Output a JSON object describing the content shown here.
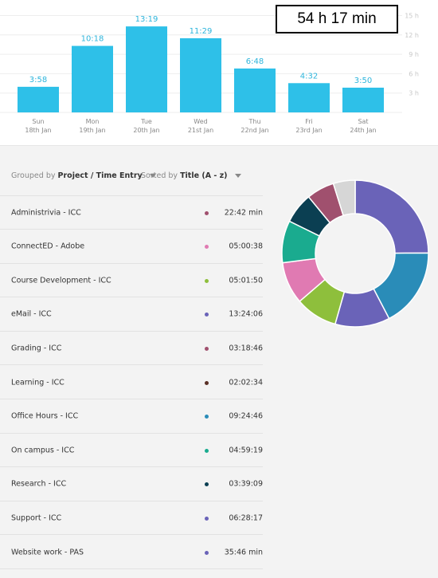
{
  "total": "54 h 17 min",
  "chart_data": {
    "type": "bar",
    "categories": [
      "Sun 18th Jan",
      "Mon 19th Jan",
      "Tue 20th Jan",
      "Wed 21st Jan",
      "Thu 22nd Jan",
      "Fri 23rd Jan",
      "Sat 24th Jan"
    ],
    "days": [
      {
        "day": "Sun",
        "date": "18th Jan"
      },
      {
        "day": "Mon",
        "date": "19th Jan"
      },
      {
        "day": "Tue",
        "date": "20th Jan"
      },
      {
        "day": "Wed",
        "date": "21st Jan"
      },
      {
        "day": "Thu",
        "date": "22nd Jan"
      },
      {
        "day": "Fri",
        "date": "23rd Jan"
      },
      {
        "day": "Sat",
        "date": "24th Jan"
      }
    ],
    "values_hours": [
      3.967,
      10.3,
      13.317,
      11.483,
      6.8,
      4.533,
      3.833
    ],
    "value_labels": [
      "3:58",
      "10:18",
      "13:19",
      "11:29",
      "6:48",
      "4:32",
      "3:50"
    ],
    "y_ticks": [
      "3 h",
      "6 h",
      "9 h",
      "12 h",
      "15 h"
    ],
    "ylim": [
      0,
      15
    ],
    "bar_color": "#2ec0e8",
    "label_color": "#2eb5dc"
  },
  "controls": {
    "group_prefix": "Grouped by",
    "group_value": "Project / Time Entry",
    "sort_prefix": "Sorted by",
    "sort_value": "Title (A - z)"
  },
  "entries": [
    {
      "name": "Administrivia - ICC",
      "time": "22:42 min",
      "color": "#a0506e"
    },
    {
      "name": "ConnectED - Adobe",
      "time": "05:00:38",
      "color": "#e07ab2"
    },
    {
      "name": "Course Development - ICC",
      "time": "05:01:50",
      "color": "#8ebf3c"
    },
    {
      "name": "eMail - ICC",
      "time": "13:24:06",
      "color": "#6a63b8"
    },
    {
      "name": "Grading - ICC",
      "time": "03:18:46",
      "color": "#a0506e"
    },
    {
      "name": "Learning - ICC",
      "time": "02:02:34",
      "color": "#5a3026"
    },
    {
      "name": "Office Hours - ICC",
      "time": "09:24:46",
      "color": "#2a8cb8"
    },
    {
      "name": "On campus - ICC",
      "time": "04:59:19",
      "color": "#1aab8f"
    },
    {
      "name": "Research - ICC",
      "time": "03:39:09",
      "color": "#0b3f52"
    },
    {
      "name": "Support - ICC",
      "time": "06:28:17",
      "color": "#6a63b8"
    },
    {
      "name": "Website work - PAS",
      "time": "35:46 min",
      "color": "#6a63b8"
    }
  ],
  "donut": [
    {
      "value": 13.4,
      "color": "#6a63b8"
    },
    {
      "value": 9.4,
      "color": "#2a8cb8"
    },
    {
      "value": 6.5,
      "color": "#6a63b8"
    },
    {
      "value": 5.0,
      "color": "#8ebf3c"
    },
    {
      "value": 5.0,
      "color": "#e07ab2"
    },
    {
      "value": 5.0,
      "color": "#1aab8f"
    },
    {
      "value": 3.65,
      "color": "#0b3f52"
    },
    {
      "value": 3.3,
      "color": "#a0506e"
    },
    {
      "value": 2.6,
      "color": "#d6d6d6"
    }
  ]
}
